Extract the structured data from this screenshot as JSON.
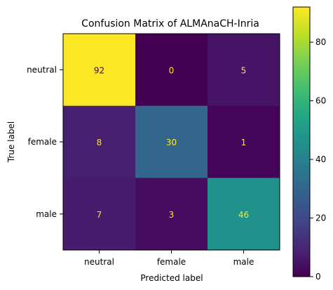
{
  "chart_data": {
    "type": "heatmap",
    "title": "Confusion Matrix of ALMAnaCH-Inria",
    "xlabel": "Predicted label",
    "ylabel": "True label",
    "x_categories": [
      "neutral",
      "female",
      "male"
    ],
    "y_categories": [
      "neutral",
      "female",
      "male"
    ],
    "values": [
      [
        92,
        0,
        5
      ],
      [
        8,
        30,
        1
      ],
      [
        7,
        3,
        46
      ]
    ],
    "colormap": "viridis",
    "color_range": [
      0,
      92
    ],
    "colorbar_ticks": [
      0,
      20,
      40,
      60,
      80
    ],
    "colors": {
      "text_on_dark": "#fde725",
      "text_on_light": "#440154"
    }
  }
}
